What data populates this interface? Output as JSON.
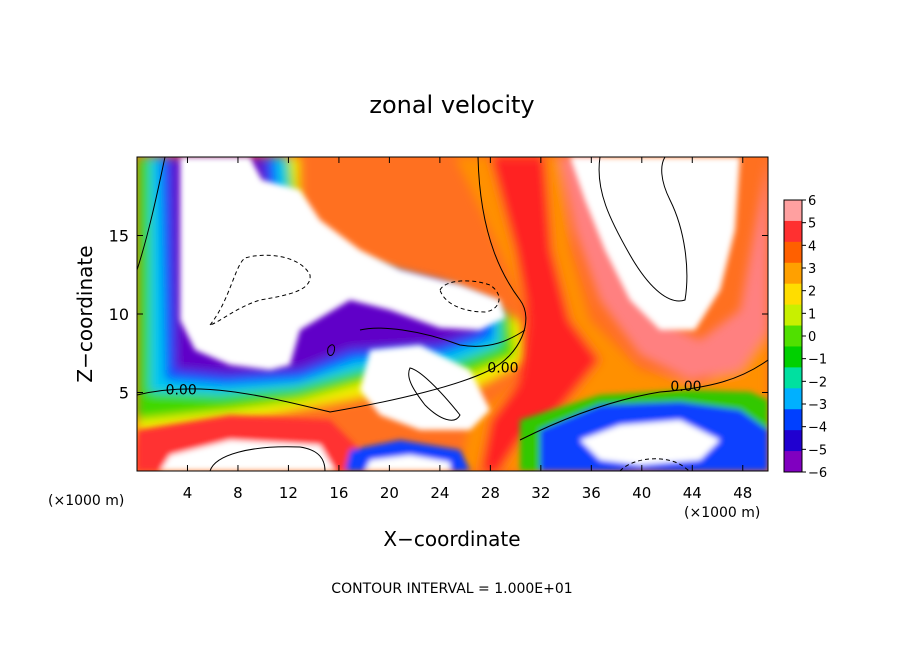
{
  "chart_data": {
    "type": "heatmap",
    "title": "zonal velocity",
    "xlabel": "X−coordinate",
    "ylabel": "Z−coordinate",
    "x_units_left": "(×1000 m)",
    "x_units_right": "(×1000 m)",
    "footer": "CONTOUR INTERVAL = 1.000E+01",
    "xlim": [
      0,
      50
    ],
    "ylim": [
      0,
      20
    ],
    "x_ticks": [
      4,
      8,
      12,
      16,
      20,
      24,
      28,
      32,
      36,
      40,
      44,
      48
    ],
    "y_ticks": [
      5,
      10,
      15
    ],
    "contour_labels": [
      {
        "text": "0.00",
        "x": 3.5,
        "y": 5.2
      },
      {
        "text": "0.00",
        "x": 29,
        "y": 6.6
      },
      {
        "text": "0.00",
        "x": 43.5,
        "y": 5.4
      }
    ],
    "colorbar": {
      "labels": [
        "6",
        "5",
        "4",
        "3",
        "2",
        "1",
        "0",
        "−1",
        "−2",
        "−3",
        "−4",
        "−5",
        "−6"
      ],
      "colors": [
        "#ffa0a0",
        "#ff3030",
        "#ff6000",
        "#ffa000",
        "#ffdd00",
        "#c8f000",
        "#50e000",
        "#00d000",
        "#00e0a0",
        "#00b0ff",
        "#0040ff",
        "#2000d0",
        "#8000c0"
      ]
    },
    "scene": {
      "background": "#ffffff",
      "regions": [
        {
          "name": "purple-band-left",
          "color": "#7a00c0",
          "kind": "fill"
        },
        {
          "name": "navy-band-left",
          "color": "#2200d8",
          "kind": "fill"
        },
        {
          "name": "blue-band-left",
          "color": "#0050ff",
          "kind": "fill"
        },
        {
          "name": "cyan-band-left",
          "color": "#00c8f0",
          "kind": "fill"
        },
        {
          "name": "green-band-left",
          "color": "#00d000",
          "kind": "fill"
        },
        {
          "name": "yellow-band-left",
          "color": "#e8f000",
          "kind": "fill"
        },
        {
          "name": "red-band-center",
          "color": "#ff1818",
          "kind": "fill"
        },
        {
          "name": "orange-band-center",
          "color": "#ff8000",
          "kind": "fill"
        },
        {
          "name": "pink-band-right",
          "color": "#ff8888",
          "kind": "fill"
        },
        {
          "name": "white-core",
          "color": "#ffffff",
          "kind": "fill"
        }
      ]
    }
  }
}
